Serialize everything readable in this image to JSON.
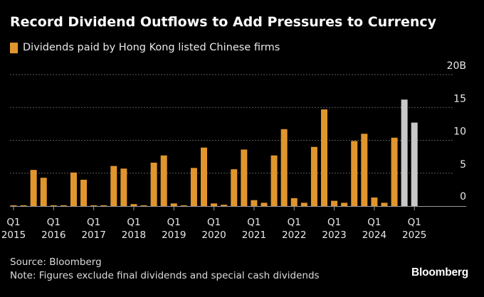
{
  "header": {
    "title": "Record Dividend Outflows to Add Pressures to Currency"
  },
  "legend": {
    "label": "Dividends paid by Hong Kong listed Chinese firms",
    "color": "#e0962d"
  },
  "footer": {
    "source": "Source: Bloomberg",
    "note": "Note: Figures exclude final dividends and special cash dividends",
    "brand": "Bloomberg"
  },
  "colors": {
    "actual": "#e0962d",
    "projected": "#c8c8c8",
    "grid": "#5a5a5a",
    "axis": "#9a9a9a",
    "text": "#e9e9e9",
    "background": "#000000"
  },
  "chart_data": {
    "type": "bar",
    "unit_suffix": "B",
    "ylim": [
      0,
      20
    ],
    "yticks": [
      0,
      5,
      10,
      15,
      20
    ],
    "ytick_labels": [
      "0",
      "5",
      "10",
      "15",
      "20B"
    ],
    "grid": true,
    "y_axis_side": "right",
    "categories": [
      "2015 Q1",
      "2015 Q2",
      "2015 Q3",
      "2015 Q4",
      "2016 Q1",
      "2016 Q2",
      "2016 Q3",
      "2016 Q4",
      "2017 Q1",
      "2017 Q2",
      "2017 Q3",
      "2017 Q4",
      "2018 Q1",
      "2018 Q2",
      "2018 Q3",
      "2018 Q4",
      "2019 Q1",
      "2019 Q2",
      "2019 Q3",
      "2019 Q4",
      "2020 Q1",
      "2020 Q2",
      "2020 Q3",
      "2020 Q4",
      "2021 Q1",
      "2021 Q2",
      "2021 Q3",
      "2021 Q4",
      "2022 Q1",
      "2022 Q2",
      "2022 Q3",
      "2022 Q4",
      "2023 Q1",
      "2023 Q2",
      "2023 Q3",
      "2023 Q4",
      "2024 Q1",
      "2024 Q2",
      "2024 Q3",
      "2024 Q4",
      "2025 Q1"
    ],
    "x_tick_labels": [
      {
        "index": 0,
        "q": "Q1",
        "year": "2015"
      },
      {
        "index": 4,
        "q": "Q1",
        "year": "2016"
      },
      {
        "index": 8,
        "q": "Q1",
        "year": "2017"
      },
      {
        "index": 12,
        "q": "Q1",
        "year": "2018"
      },
      {
        "index": 16,
        "q": "Q1",
        "year": "2019"
      },
      {
        "index": 20,
        "q": "Q1",
        "year": "2020"
      },
      {
        "index": 24,
        "q": "Q1",
        "year": "2021"
      },
      {
        "index": 28,
        "q": "Q1",
        "year": "2022"
      },
      {
        "index": 32,
        "q": "Q1",
        "year": "2023"
      },
      {
        "index": 36,
        "q": "Q1",
        "year": "2024"
      },
      {
        "index": 40,
        "q": "Q1",
        "year": "2025"
      }
    ],
    "series": [
      {
        "name": "Dividends paid by Hong Kong listed Chinese firms",
        "values": [
          0.1,
          0.1,
          5.5,
          4.3,
          0.1,
          0.05,
          5.1,
          4.0,
          0.1,
          0.05,
          6.1,
          5.7,
          0.3,
          0.05,
          6.6,
          7.7,
          0.4,
          0.05,
          5.8,
          8.9,
          0.4,
          0.2,
          5.6,
          8.6,
          0.9,
          0.5,
          7.7,
          11.7,
          1.2,
          0.5,
          9.0,
          14.7,
          0.8,
          0.5,
          9.9,
          11.0,
          1.3,
          0.5,
          10.4,
          16.2,
          12.7
        ],
        "projected": [
          false,
          false,
          false,
          false,
          false,
          false,
          false,
          false,
          false,
          false,
          false,
          false,
          false,
          false,
          false,
          false,
          false,
          false,
          false,
          false,
          false,
          false,
          false,
          false,
          false,
          false,
          false,
          false,
          false,
          false,
          false,
          false,
          false,
          false,
          false,
          false,
          false,
          false,
          false,
          true,
          true
        ]
      }
    ]
  }
}
